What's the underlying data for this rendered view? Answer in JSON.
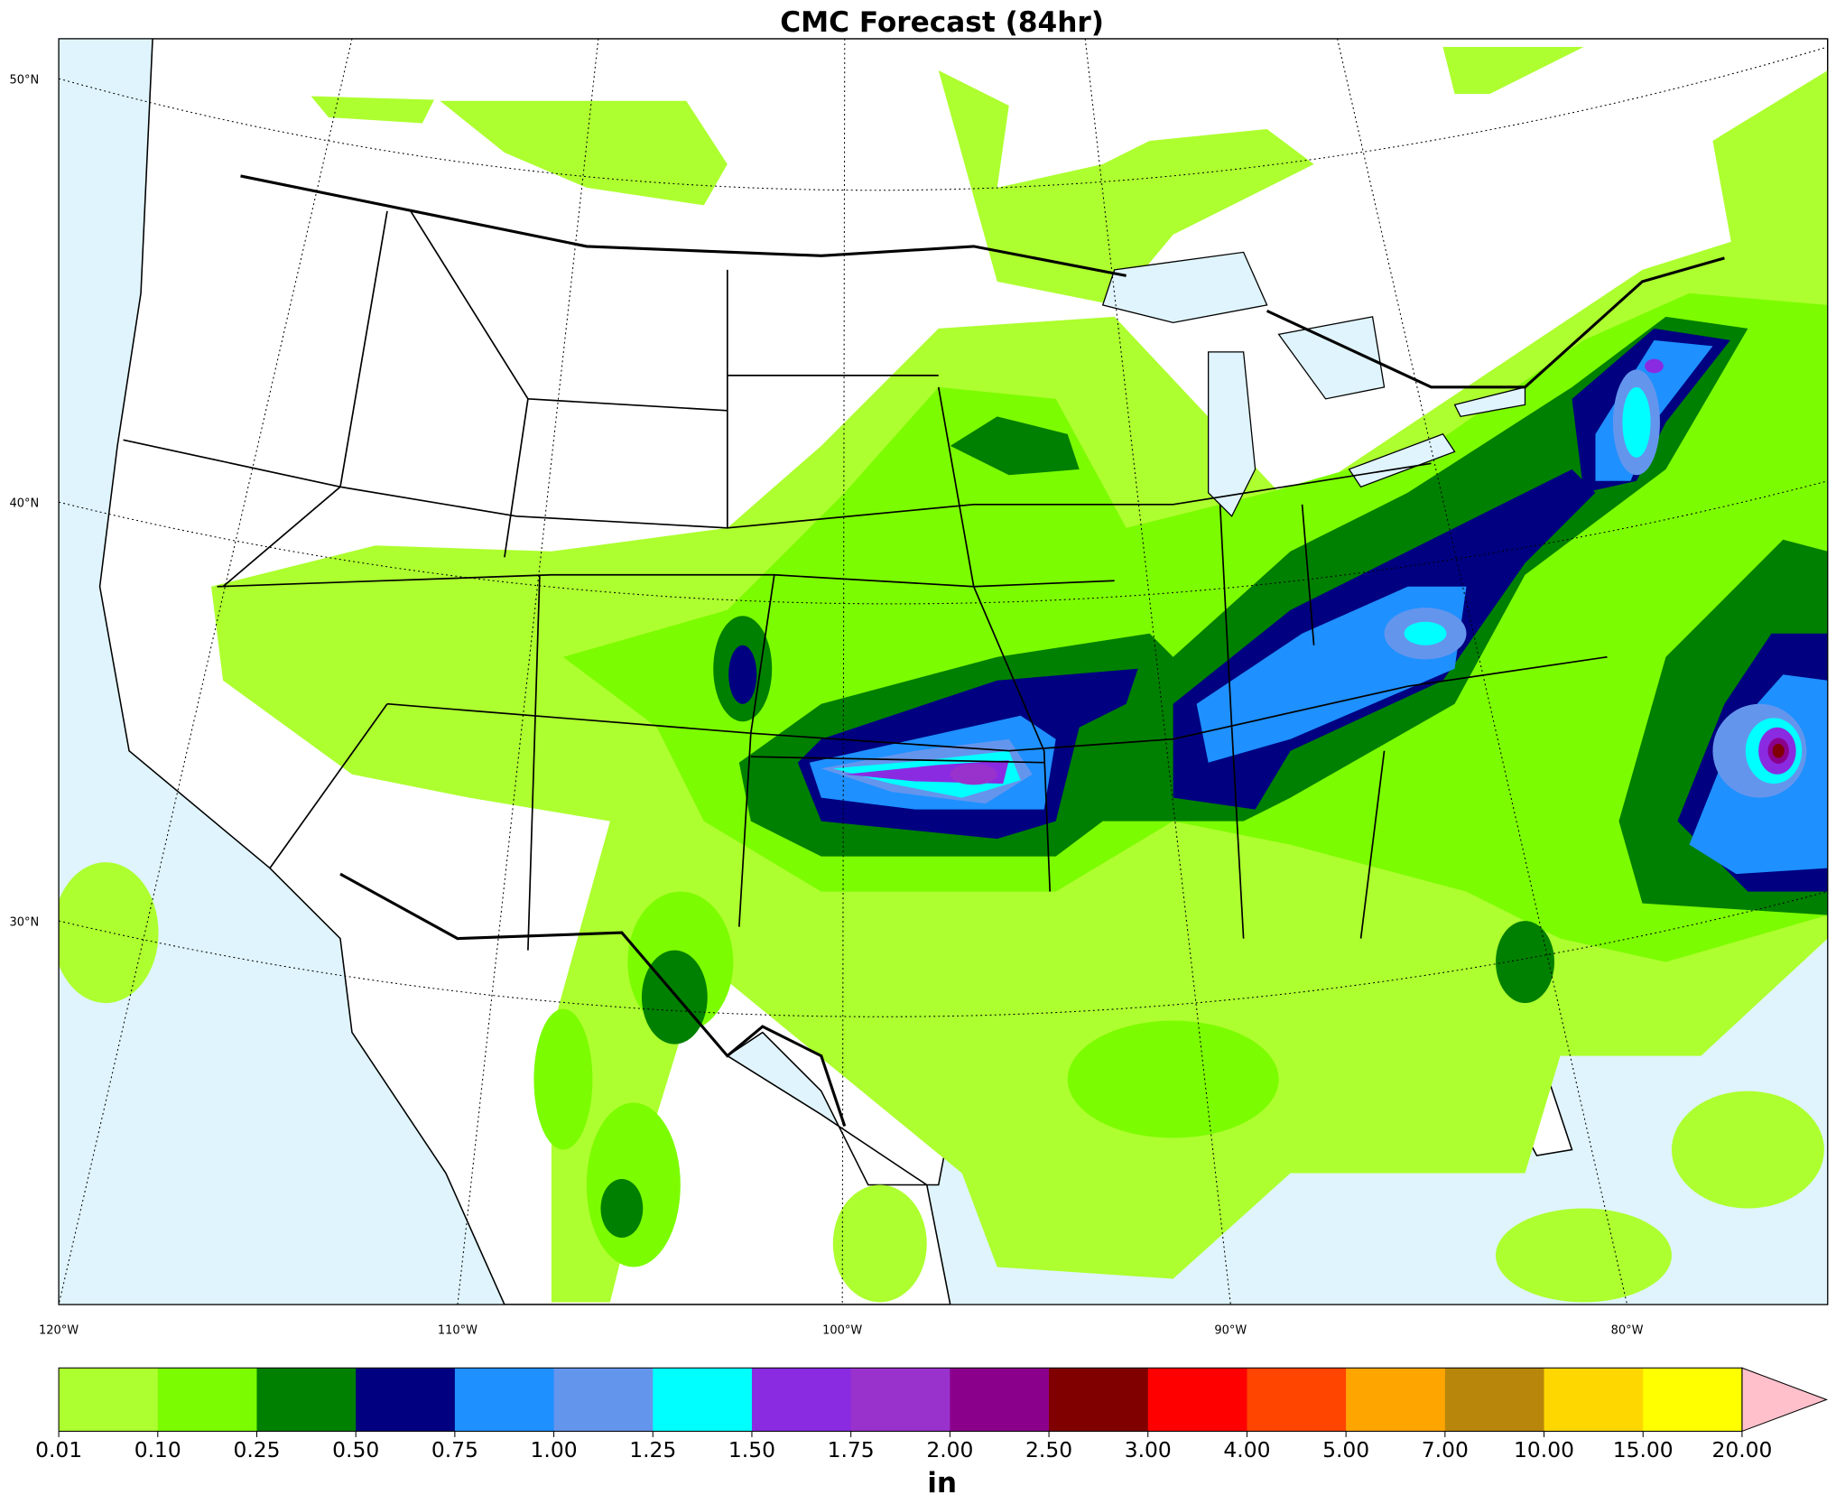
{
  "map": {
    "title": "CMC Forecast (84hr)",
    "lat_labels": [
      "50°N",
      "40°N",
      "30°N"
    ],
    "lon_labels": [
      "120°W",
      "110°W",
      "100°W",
      "90°W",
      "80°W"
    ],
    "colorbar": {
      "label": "in",
      "levels": [
        {
          "value": 0.01,
          "label": "0.01"
        },
        {
          "value": 0.1,
          "label": "0.10"
        },
        {
          "value": 0.25,
          "label": "0.25"
        },
        {
          "value": 0.5,
          "label": "0.50"
        },
        {
          "value": 0.75,
          "label": "0.75"
        },
        {
          "value": 1,
          "label": "1.00"
        },
        {
          "value": 1.25,
          "label": "1.25"
        },
        {
          "value": 1.5,
          "label": "1.50"
        },
        {
          "value": 1.75,
          "label": "1.75"
        },
        {
          "value": 2,
          "label": "2.00"
        },
        {
          "value": 2.5,
          "label": "2.50"
        },
        {
          "value": 3,
          "label": "3.00"
        },
        {
          "value": 4,
          "label": "4.00"
        },
        {
          "value": 5,
          "label": "5.00"
        },
        {
          "value": 7,
          "label": "7.00"
        },
        {
          "value": 10,
          "label": "10.00"
        },
        {
          "value": 15,
          "label": "15.00"
        },
        {
          "value": 20,
          "label": "20.00"
        }
      ],
      "colors": [
        "#adff2f",
        "#7cfc00",
        "#008000",
        "#000080",
        "#1e90ff",
        "#6495ed",
        "#00ffff",
        "#8a2be2",
        "#9932cc",
        "#8b008b",
        "#800000",
        "#ff0000",
        "#ff4500",
        "#ffa500",
        "#b8860b",
        "#ffd700",
        "#ffff00"
      ],
      "extend_color": "#ffc0cb"
    }
  }
}
